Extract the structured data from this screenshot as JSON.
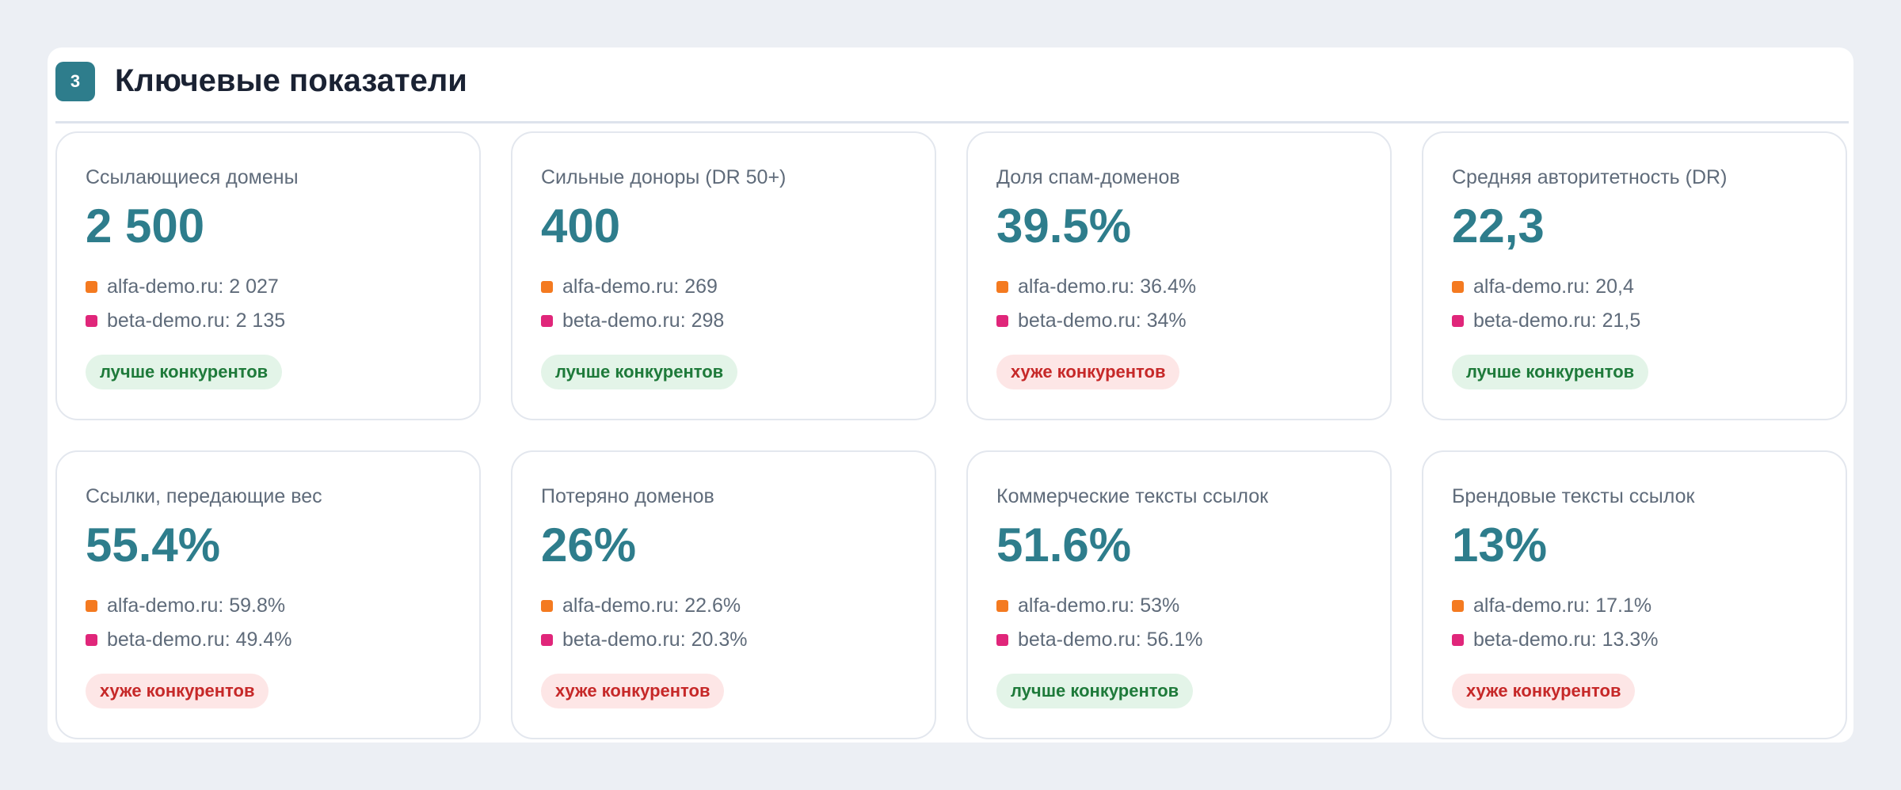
{
  "section": {
    "number": "3",
    "title": "Ключевые показатели"
  },
  "colors": {
    "accent": "#2e7d8c",
    "alfa": "#f47a20",
    "beta": "#e0267a",
    "good_bg": "#e3f4e8",
    "good_text": "#1e7a3a",
    "bad_bg": "#fde6e6",
    "bad_text": "#c62828"
  },
  "cards": [
    {
      "label": "Ссылающиеся домены",
      "value": "2 500",
      "alfa": "alfa-demo.ru: 2 027",
      "beta": "beta-demo.ru: 2 135",
      "verdict": "лучше конкурентов",
      "status": "good"
    },
    {
      "label": "Сильные доноры (DR 50+)",
      "value": "400",
      "alfa": "alfa-demo.ru: 269",
      "beta": "beta-demo.ru: 298",
      "verdict": "лучше конкурентов",
      "status": "good"
    },
    {
      "label": "Доля спам-доменов",
      "value": "39.5%",
      "alfa": "alfa-demo.ru: 36.4%",
      "beta": "beta-demo.ru: 34%",
      "verdict": "хуже конкурентов",
      "status": "bad"
    },
    {
      "label": "Средняя авторитетность (DR)",
      "value": "22,3",
      "alfa": "alfa-demo.ru: 20,4",
      "beta": "beta-demo.ru: 21,5",
      "verdict": "лучше конкурентов",
      "status": "good"
    },
    {
      "label": "Ссылки, передающие вес",
      "value": "55.4%",
      "alfa": "alfa-demo.ru: 59.8%",
      "beta": "beta-demo.ru: 49.4%",
      "verdict": "хуже конкурентов",
      "status": "bad"
    },
    {
      "label": "Потеряно доменов",
      "value": "26%",
      "alfa": "alfa-demo.ru: 22.6%",
      "beta": "beta-demo.ru: 20.3%",
      "verdict": "хуже конкурентов",
      "status": "bad"
    },
    {
      "label": "Коммерческие тексты ссылок",
      "value": "51.6%",
      "alfa": "alfa-demo.ru: 53%",
      "beta": "beta-demo.ru: 56.1%",
      "verdict": "лучше конкурентов",
      "status": "good"
    },
    {
      "label": "Брендовые тексты ссылок",
      "value": "13%",
      "alfa": "alfa-demo.ru: 17.1%",
      "beta": "beta-demo.ru: 13.3%",
      "verdict": "хуже конкурентов",
      "status": "bad"
    }
  ]
}
